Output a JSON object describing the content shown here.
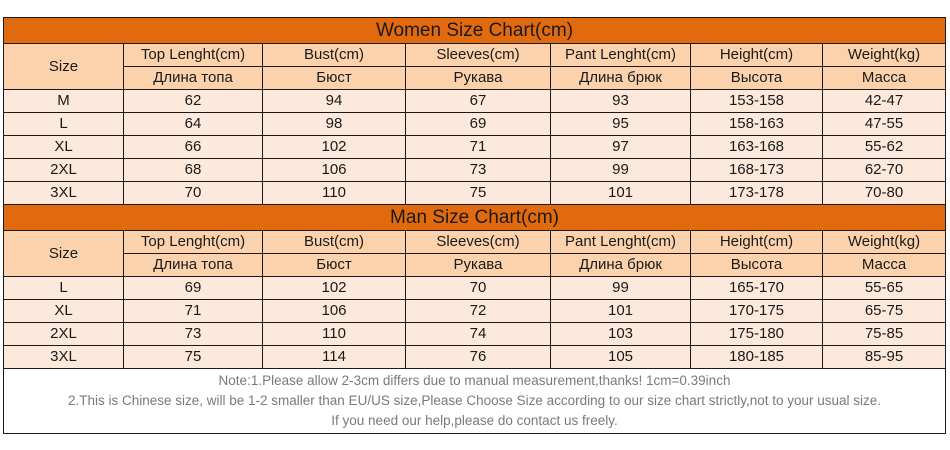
{
  "women": {
    "title": "Women Size Chart(cm)",
    "size_label": "Size",
    "headers_en": [
      "Top Lenght(cm)",
      "Bust(cm)",
      "Sleeves(cm)",
      "Pant Lenght(cm)",
      "Height(cm)",
      "Weight(kg)"
    ],
    "headers_ru": [
      "Длина топа",
      "Бюст",
      "Рукава",
      "Длина брюк",
      "Высота",
      "Масса"
    ],
    "rows": [
      [
        "M",
        "62",
        "94",
        "67",
        "93",
        "153-158",
        "42-47"
      ],
      [
        "L",
        "64",
        "98",
        "69",
        "95",
        "158-163",
        "47-55"
      ],
      [
        "XL",
        "66",
        "102",
        "71",
        "97",
        "163-168",
        "55-62"
      ],
      [
        "2XL",
        "68",
        "106",
        "73",
        "99",
        "168-173",
        "62-70"
      ],
      [
        "3XL",
        "70",
        "110",
        "75",
        "101",
        "173-178",
        "70-80"
      ]
    ]
  },
  "man": {
    "title": "Man Size Chart(cm)",
    "size_label": "Size",
    "headers_en": [
      "Top Lenght(cm)",
      "Bust(cm)",
      "Sleeves(cm)",
      "Pant Lenght(cm)",
      "Height(cm)",
      "Weight(kg)"
    ],
    "headers_ru": [
      "Длина топа",
      "Бюст",
      "Рукава",
      "Длина брюк",
      "Высота",
      "Масса"
    ],
    "rows": [
      [
        "L",
        "69",
        "102",
        "70",
        "99",
        "165-170",
        "55-65"
      ],
      [
        "XL",
        "71",
        "106",
        "72",
        "101",
        "170-175",
        "65-75"
      ],
      [
        "2XL",
        "73",
        "110",
        "74",
        "103",
        "175-180",
        "75-85"
      ],
      [
        "3XL",
        "75",
        "114",
        "76",
        "105",
        "180-185",
        "85-95"
      ]
    ]
  },
  "notes": [
    "Note:1.Please allow 2-3cm differs due to manual measurement,thanks! 1cm=0.39inch",
    "2.This is Chinese size, will be 1-2 smaller than EU/US size,Please Choose Size according to our size chart strictly,not to your usual size.",
    "If you need our help,please do contact us freely."
  ],
  "colors": {
    "title_bar": "#e26a0e",
    "header_bg": "#fbd2ac",
    "row_bg": "#fde9db",
    "border": "#1a1a1a",
    "note_text": "#7a7a7a"
  }
}
